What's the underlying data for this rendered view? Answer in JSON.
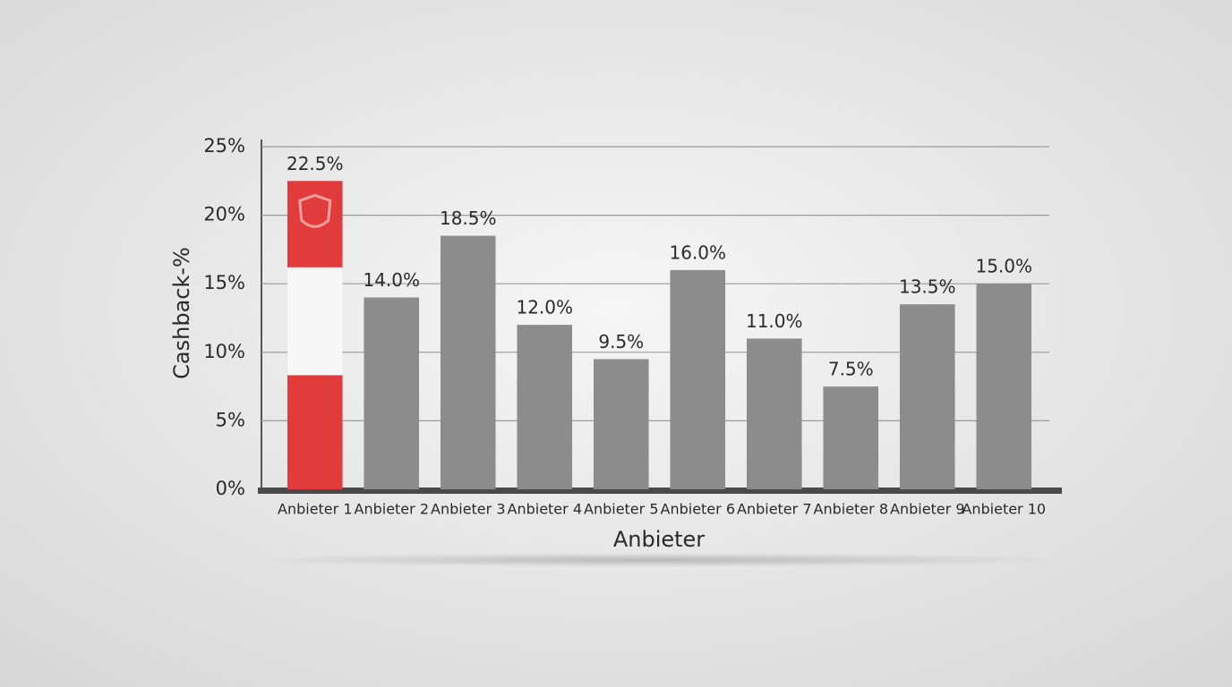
{
  "chart_data": {
    "type": "bar",
    "x_label": "Anbieter",
    "y_label": "Cashback-%",
    "categories": [
      "Anbieter 1",
      "Anbieter 2",
      "Anbieter 3",
      "Anbieter 4",
      "Anbieter 5",
      "Anbieter 6",
      "Anbieter 7",
      "Anbieter 8",
      "Anbieter 9",
      "Anbieter 10"
    ],
    "values": [
      22.5,
      14.0,
      18.5,
      12.0,
      9.5,
      16.0,
      11.0,
      7.5,
      13.5,
      15.0
    ],
    "value_labels": [
      "22.5%",
      "14.0%",
      "18.5%",
      "12.0%",
      "9.5%",
      "16.0%",
      "11.0%",
      "7.5%",
      "13.5%",
      "15.0%"
    ],
    "colors": [
      "#e23b3b",
      "#8c8c8c",
      "#8c8c8c",
      "#8c8c8c",
      "#8c8c8c",
      "#8c8c8c",
      "#8c8c8c",
      "#8c8c8c",
      "#8c8c8c",
      "#8c8c8c"
    ],
    "ylim": [
      0,
      25
    ],
    "yticks": [
      {
        "value": 0,
        "label": "0%"
      },
      {
        "value": 5,
        "label": "5%"
      },
      {
        "value": 10,
        "label": "10%"
      },
      {
        "value": 15,
        "label": "15%"
      },
      {
        "value": 20,
        "label": "20%"
      },
      {
        "value": 25,
        "label": "25%"
      }
    ],
    "grid": true
  }
}
